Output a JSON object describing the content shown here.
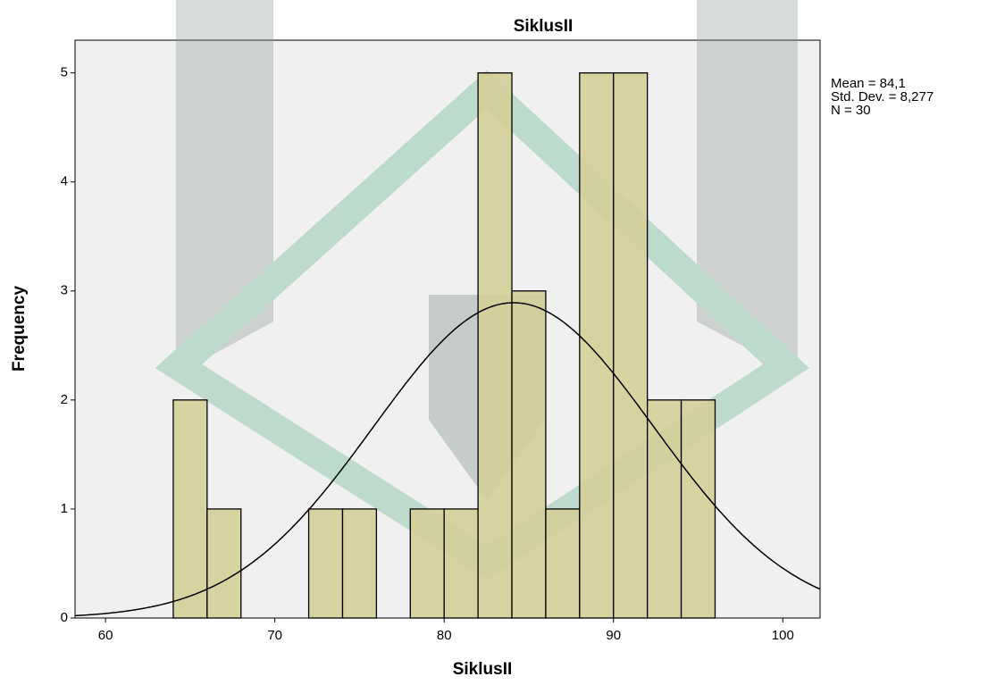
{
  "chart_data": {
    "type": "histogram",
    "title": "SiklusII",
    "x_label": "SiklusII",
    "y_label": "Frequency",
    "bins": [
      64,
      66,
      68,
      70,
      72,
      74,
      76,
      78,
      80,
      82,
      84,
      86,
      88,
      90,
      92,
      94,
      96
    ],
    "counts": [
      2,
      1,
      0,
      0,
      1,
      1,
      0,
      1,
      1,
      5,
      3,
      1,
      5,
      5,
      2,
      2
    ],
    "color": "#d4cf98",
    "xlim": [
      58.2,
      102.2
    ],
    "xticks": [
      60,
      70,
      80,
      90,
      100
    ],
    "ylim": [
      0,
      5.3
    ],
    "yticks": [
      0,
      1,
      2,
      3,
      4,
      5
    ],
    "stats": {
      "mean": {
        "value": 84.1,
        "label": "Mean = 84,1"
      },
      "sd": {
        "value": 8.277,
        "label": "Std. Dev. = 8,277"
      },
      "n": {
        "value": 30,
        "label": "N = 30"
      }
    },
    "normal_curve": true
  }
}
